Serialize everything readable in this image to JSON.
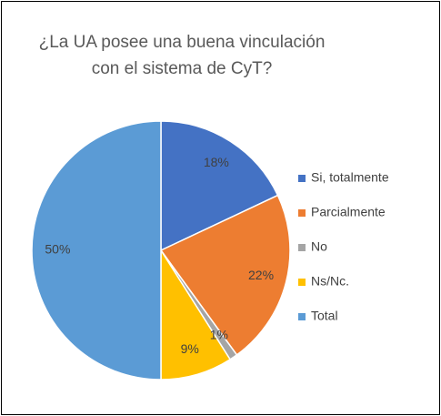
{
  "chart_data": {
    "type": "pie",
    "title": "¿La UA posee una buena vinculación con el sistema de CyT?",
    "categories": [
      "Si, totalmente",
      "Parcialmente",
      "No",
      "Ns/Nc.",
      "Total"
    ],
    "values": [
      18,
      22,
      1,
      9,
      50
    ],
    "value_labels": [
      "18%",
      "22%",
      "1%",
      "9%",
      "50%"
    ],
    "colors": [
      "#4472c4",
      "#ed7d31",
      "#a5a5a5",
      "#ffc000",
      "#5b9bd5"
    ],
    "legend": "right"
  }
}
